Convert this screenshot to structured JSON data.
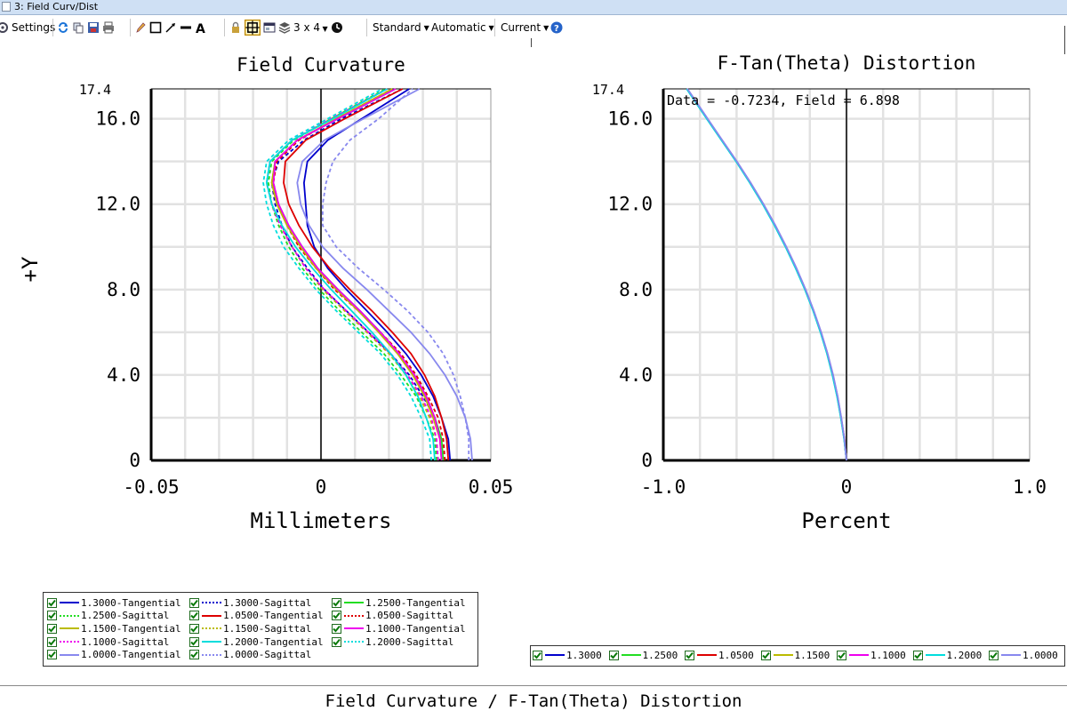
{
  "window": {
    "title": "3: Field Curv/Dist"
  },
  "toolbar": {
    "settings_label": "Settings",
    "layout_label": "3 x 4",
    "standard_label": "Standard",
    "automatic_label": "Automatic",
    "current_label": "Current"
  },
  "footer": {
    "title": "Field Curvature / F-Tan(Theta) Distortion"
  },
  "colors": {
    "c1300": "#0000cc",
    "c1250": "#22dd22",
    "c1050": "#dd0000",
    "c1150": "#bbbb00",
    "c1100": "#ee00ee",
    "c1200": "#00dddd",
    "c1000": "#8888ee"
  },
  "chart_data": [
    {
      "type": "line",
      "title": "Field Curvature",
      "xlabel": "Millimeters",
      "ylabel": "+Y",
      "xlim": [
        -0.05,
        0.05
      ],
      "ylim": [
        0,
        17.4
      ],
      "xticks": [
        "-0.05",
        "0",
        "0.05"
      ],
      "yticks": [
        "0",
        "4.0",
        "8.0",
        "12.0",
        "16.0"
      ],
      "ymax_label": "17.4",
      "grid": true,
      "legend_position": "bottom-left",
      "y": [
        0,
        1,
        2,
        3,
        4,
        5,
        6,
        7,
        8,
        9,
        10,
        11,
        12,
        13,
        14,
        15,
        16,
        17.4
      ],
      "series": [
        {
          "name": "1.3000-Tangential",
          "color": "#0000cc",
          "dash": "solid",
          "values": [
            0.038,
            0.0375,
            0.0355,
            0.033,
            0.0295,
            0.025,
            0.0195,
            0.0135,
            0.0075,
            0.002,
            -0.002,
            -0.004,
            -0.0045,
            -0.005,
            -0.004,
            0.002,
            0.012,
            0.026
          ]
        },
        {
          "name": "1.3000-Sagittal",
          "color": "#0000cc",
          "dash": "dotted",
          "values": [
            0.036,
            0.0355,
            0.0335,
            0.03,
            0.026,
            0.0205,
            0.014,
            0.0075,
            0.001,
            -0.004,
            -0.0085,
            -0.0115,
            -0.0135,
            -0.0145,
            -0.0125,
            -0.005,
            0.006,
            0.024
          ]
        },
        {
          "name": "1.2500-Tangential",
          "color": "#22dd22",
          "dash": "solid",
          "values": [
            0.036,
            0.0355,
            0.0335,
            0.031,
            0.0275,
            0.023,
            0.0175,
            0.0115,
            0.005,
            -0.001,
            -0.0055,
            -0.0095,
            -0.0125,
            -0.0145,
            -0.0135,
            -0.007,
            0.005,
            0.022
          ]
        },
        {
          "name": "1.2500-Sagittal",
          "color": "#22dd22",
          "dash": "dotted",
          "values": [
            0.034,
            0.0335,
            0.031,
            0.028,
            0.0235,
            0.0185,
            0.012,
            0.0055,
            -0.0005,
            -0.0055,
            -0.0095,
            -0.0125,
            -0.0145,
            -0.0155,
            -0.0145,
            -0.008,
            0.003,
            0.019
          ]
        },
        {
          "name": "1.0500-Tangential",
          "color": "#dd0000",
          "dash": "solid",
          "values": [
            0.0375,
            0.037,
            0.0355,
            0.0335,
            0.0305,
            0.0265,
            0.021,
            0.015,
            0.0085,
            0.0025,
            -0.0025,
            -0.0065,
            -0.0095,
            -0.011,
            -0.0105,
            -0.0045,
            0.007,
            0.024
          ]
        },
        {
          "name": "1.0500-Sagittal",
          "color": "#dd0000",
          "dash": "dotted",
          "values": [
            0.0365,
            0.036,
            0.0345,
            0.0315,
            0.028,
            0.0235,
            0.0175,
            0.011,
            0.004,
            -0.0015,
            -0.0065,
            -0.01,
            -0.0125,
            -0.014,
            -0.013,
            -0.0065,
            0.0045,
            0.021
          ]
        },
        {
          "name": "1.1500-Tangential",
          "color": "#bbbb00",
          "dash": "solid",
          "values": [
            0.0355,
            0.035,
            0.033,
            0.0305,
            0.027,
            0.0225,
            0.017,
            0.011,
            0.0045,
            -0.0015,
            -0.006,
            -0.01,
            -0.013,
            -0.0145,
            -0.0135,
            -0.007,
            0.0045,
            0.021
          ]
        },
        {
          "name": "1.1500-Sagittal",
          "color": "#bbbb00",
          "dash": "dotted",
          "values": [
            0.0345,
            0.034,
            0.032,
            0.029,
            0.025,
            0.02,
            0.0135,
            0.007,
            0.0005,
            -0.0045,
            -0.0085,
            -0.012,
            -0.0145,
            -0.016,
            -0.015,
            -0.0085,
            0.003,
            0.0195
          ]
        },
        {
          "name": "1.1000-Tangential",
          "color": "#ee00ee",
          "dash": "solid",
          "values": [
            0.0355,
            0.035,
            0.0335,
            0.031,
            0.0275,
            0.023,
            0.0175,
            0.0115,
            0.005,
            -0.001,
            -0.0055,
            -0.0095,
            -0.0125,
            -0.014,
            -0.0135,
            -0.007,
            0.005,
            0.022
          ]
        },
        {
          "name": "1.1000-Sagittal",
          "color": "#ee00ee",
          "dash": "dotted",
          "values": [
            0.0345,
            0.034,
            0.0325,
            0.0295,
            0.0255,
            0.0205,
            0.014,
            0.0075,
            0.001,
            -0.0045,
            -0.0085,
            -0.012,
            -0.0145,
            -0.016,
            -0.015,
            -0.0085,
            0.003,
            0.0195
          ]
        },
        {
          "name": "1.2000-Tangential",
          "color": "#00dddd",
          "dash": "solid",
          "values": [
            0.0335,
            0.033,
            0.031,
            0.0285,
            0.025,
            0.0205,
            0.015,
            0.009,
            0.003,
            -0.0025,
            -0.0075,
            -0.0115,
            -0.0145,
            -0.016,
            -0.015,
            -0.0085,
            0.0035,
            0.0195
          ]
        },
        {
          "name": "1.2000-Sagittal",
          "color": "#00dddd",
          "dash": "dotted",
          "values": [
            0.0325,
            0.032,
            0.0295,
            0.0265,
            0.0225,
            0.0175,
            0.011,
            0.0045,
            -0.0015,
            -0.0065,
            -0.011,
            -0.014,
            -0.016,
            -0.017,
            -0.016,
            -0.0095,
            0.002,
            0.018
          ]
        },
        {
          "name": "1.0000-Tangential",
          "color": "#8888ee",
          "dash": "solid",
          "values": [
            0.0445,
            0.044,
            0.0425,
            0.04,
            0.0365,
            0.032,
            0.0265,
            0.02,
            0.0135,
            0.0065,
            0.0005,
            -0.0035,
            -0.006,
            -0.007,
            -0.0055,
            0.001,
            0.0125,
            0.029
          ]
        },
        {
          "name": "1.0000-Sagittal",
          "color": "#8888ee",
          "dash": "dotted",
          "values": [
            0.0435,
            0.0435,
            0.0425,
            0.041,
            0.039,
            0.036,
            0.0315,
            0.0255,
            0.0185,
            0.011,
            0.0045,
            0.0005,
            0.0005,
            0.0015,
            0.0035,
            0.0085,
            0.017,
            0.027
          ]
        }
      ]
    },
    {
      "type": "line",
      "title": "F-Tan(Theta) Distortion",
      "xlabel": "Percent",
      "ylabel": "",
      "xlim": [
        -1.0,
        1.0
      ],
      "ylim": [
        0,
        17.4
      ],
      "xticks": [
        "-1.0",
        "0",
        "1.0"
      ],
      "yticks": [
        "0",
        "4.0",
        "8.0",
        "12.0",
        "16.0"
      ],
      "ymax_label": "17.4",
      "grid": true,
      "legend_position": "bottom",
      "annotation": "Data = -0.7234, Field = 6.898",
      "y": [
        0,
        1,
        2,
        3,
        4,
        5,
        6,
        7,
        8,
        9,
        10,
        11,
        12,
        13,
        14,
        15,
        16,
        17.4
      ],
      "series": [
        {
          "name": "1.3000",
          "color": "#0000cc",
          "values": [
            0,
            -0.012,
            -0.03,
            -0.05,
            -0.075,
            -0.105,
            -0.14,
            -0.18,
            -0.225,
            -0.275,
            -0.33,
            -0.39,
            -0.455,
            -0.525,
            -0.6,
            -0.68,
            -0.76,
            -0.87
          ]
        },
        {
          "name": "1.2500",
          "color": "#22dd22",
          "values": [
            0,
            -0.012,
            -0.03,
            -0.05,
            -0.076,
            -0.106,
            -0.141,
            -0.181,
            -0.226,
            -0.276,
            -0.331,
            -0.391,
            -0.456,
            -0.526,
            -0.601,
            -0.681,
            -0.761,
            -0.871
          ]
        },
        {
          "name": "1.0500",
          "color": "#dd0000",
          "values": [
            0,
            -0.011,
            -0.029,
            -0.049,
            -0.074,
            -0.104,
            -0.139,
            -0.179,
            -0.224,
            -0.274,
            -0.329,
            -0.389,
            -0.454,
            -0.524,
            -0.599,
            -0.679,
            -0.759,
            -0.869
          ]
        },
        {
          "name": "1.1500",
          "color": "#bbbb00",
          "values": [
            0,
            -0.012,
            -0.03,
            -0.051,
            -0.076,
            -0.106,
            -0.141,
            -0.181,
            -0.226,
            -0.277,
            -0.332,
            -0.392,
            -0.457,
            -0.527,
            -0.602,
            -0.682,
            -0.762,
            -0.872
          ]
        },
        {
          "name": "1.1000",
          "color": "#ee00ee",
          "values": [
            0,
            -0.012,
            -0.03,
            -0.05,
            -0.075,
            -0.105,
            -0.14,
            -0.18,
            -0.225,
            -0.276,
            -0.331,
            -0.391,
            -0.456,
            -0.526,
            -0.601,
            -0.681,
            -0.761,
            -0.871
          ]
        },
        {
          "name": "1.2000",
          "color": "#00dddd",
          "values": [
            0,
            -0.013,
            -0.031,
            -0.052,
            -0.077,
            -0.107,
            -0.142,
            -0.182,
            -0.227,
            -0.278,
            -0.333,
            -0.393,
            -0.458,
            -0.528,
            -0.603,
            -0.683,
            -0.763,
            -0.873
          ]
        },
        {
          "name": "1.0000",
          "color": "#8888ee",
          "values": [
            0,
            -0.011,
            -0.028,
            -0.048,
            -0.073,
            -0.103,
            -0.138,
            -0.178,
            -0.223,
            -0.273,
            -0.328,
            -0.388,
            -0.453,
            -0.523,
            -0.598,
            -0.678,
            -0.758,
            -0.868
          ]
        }
      ]
    }
  ]
}
